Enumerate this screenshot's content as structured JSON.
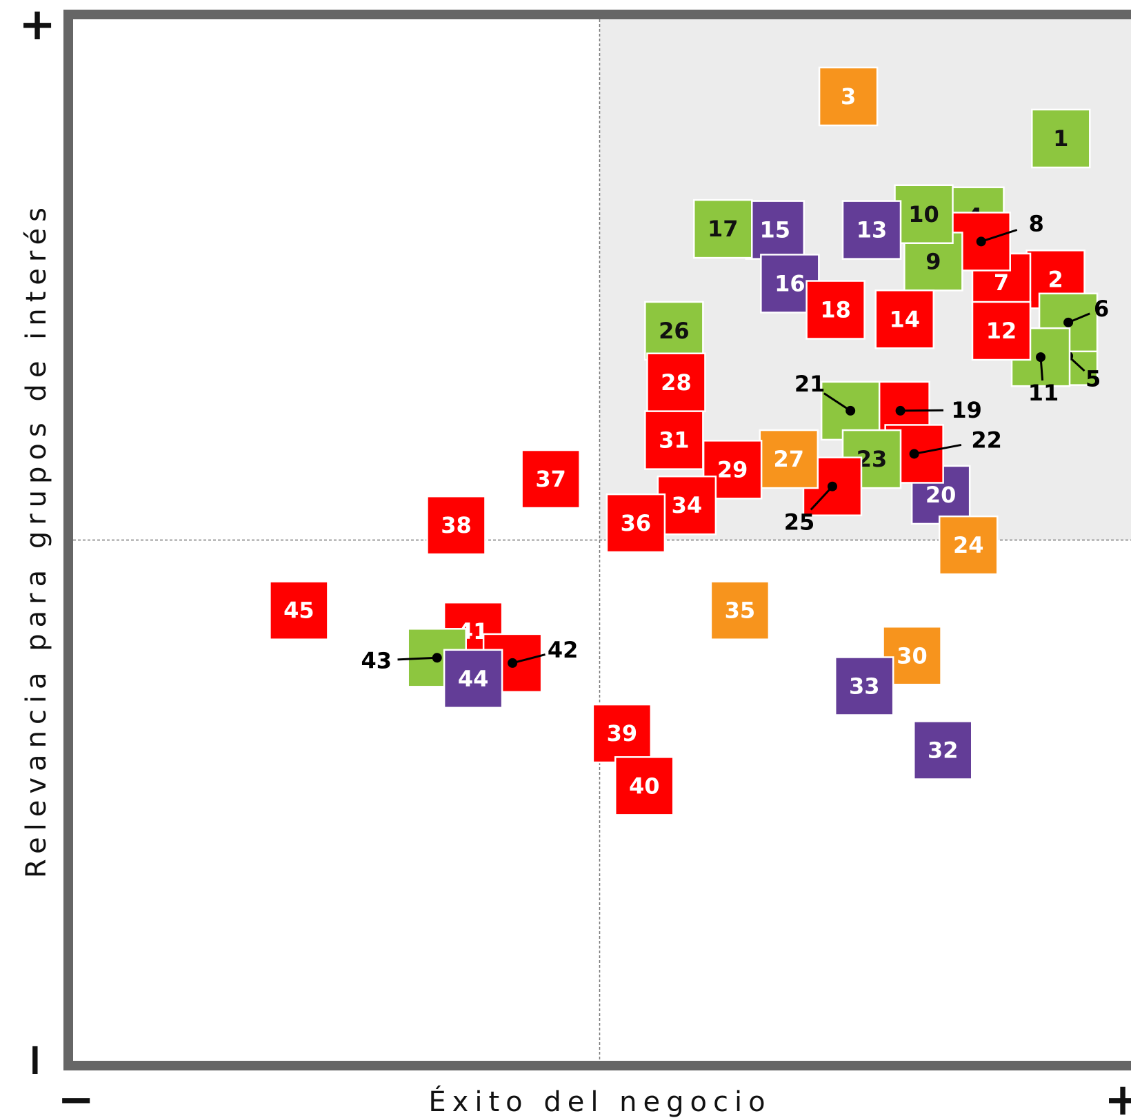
{
  "chart_data": {
    "type": "scatter",
    "x_label": "Éxito del negocio",
    "y_label": "Relevancia para grupos de interés",
    "x_min_label": "−",
    "x_max_label": "+",
    "y_min_label": "−",
    "y_max_label": "+",
    "xlim": [
      0,
      100
    ],
    "ylim": [
      0,
      100
    ],
    "x_split": 50,
    "y_split": 50,
    "highlight_color": "#ececec",
    "colors": {
      "green": "#8dc63f",
      "purple": "#633d97",
      "red": "#ff0000",
      "orange": "#f7941d"
    },
    "points": [
      {
        "label": "1",
        "x": 93.4,
        "y": 88.2,
        "color": "green"
      },
      {
        "label": "2",
        "x": 92.9,
        "y": 74.8,
        "color": "red"
      },
      {
        "label": "3",
        "x": 73.4,
        "y": 92.2,
        "color": "orange"
      },
      {
        "label": "4",
        "x": 85.3,
        "y": 80.8,
        "color": "green"
      },
      {
        "label": "5",
        "x": 94.1,
        "y": 67.5,
        "color": "green"
      },
      {
        "label": "6",
        "x": 94.1,
        "y": 70.7,
        "color": "green"
      },
      {
        "label": "7",
        "x": 87.8,
        "y": 74.5,
        "color": "red"
      },
      {
        "label": "8",
        "x": 85.9,
        "y": 78.4,
        "color": "red"
      },
      {
        "label": "9",
        "x": 81.4,
        "y": 76.5,
        "color": "green"
      },
      {
        "label": "10",
        "x": 80.5,
        "y": 81.0,
        "color": "green"
      },
      {
        "label": "11",
        "x": 91.5,
        "y": 67.4,
        "color": "green"
      },
      {
        "label": "12",
        "x": 87.8,
        "y": 69.9,
        "color": "red"
      },
      {
        "label": "13",
        "x": 75.6,
        "y": 79.5,
        "color": "purple"
      },
      {
        "label": "14",
        "x": 78.7,
        "y": 71.0,
        "color": "red"
      },
      {
        "label": "15",
        "x": 66.5,
        "y": 79.5,
        "color": "purple"
      },
      {
        "label": "16",
        "x": 67.9,
        "y": 74.4,
        "color": "purple"
      },
      {
        "label": "17",
        "x": 61.6,
        "y": 79.6,
        "color": "green"
      },
      {
        "label": "18",
        "x": 72.2,
        "y": 71.9,
        "color": "red"
      },
      {
        "label": "19",
        "x": 78.3,
        "y": 62.3,
        "color": "red"
      },
      {
        "label": "20",
        "x": 82.1,
        "y": 54.3,
        "color": "purple"
      },
      {
        "label": "21",
        "x": 73.6,
        "y": 62.3,
        "color": "green"
      },
      {
        "label": "22",
        "x": 79.6,
        "y": 58.2,
        "color": "red"
      },
      {
        "label": "23",
        "x": 75.6,
        "y": 57.7,
        "color": "green"
      },
      {
        "label": "24",
        "x": 84.7,
        "y": 49.5,
        "color": "orange"
      },
      {
        "label": "25",
        "x": 71.9,
        "y": 55.1,
        "color": "red"
      },
      {
        "label": "26",
        "x": 57.0,
        "y": 69.9,
        "color": "green"
      },
      {
        "label": "27",
        "x": 67.8,
        "y": 57.7,
        "color": "orange"
      },
      {
        "label": "28",
        "x": 57.2,
        "y": 65.0,
        "color": "red"
      },
      {
        "label": "29",
        "x": 62.5,
        "y": 56.7,
        "color": "red"
      },
      {
        "label": "30",
        "x": 79.4,
        "y": 39.0,
        "color": "orange"
      },
      {
        "label": "31",
        "x": 57.0,
        "y": 59.5,
        "color": "red"
      },
      {
        "label": "32",
        "x": 82.3,
        "y": 30.0,
        "color": "purple"
      },
      {
        "label": "33",
        "x": 74.9,
        "y": 36.1,
        "color": "purple"
      },
      {
        "label": "34",
        "x": 58.2,
        "y": 53.3,
        "color": "red"
      },
      {
        "label": "35",
        "x": 63.2,
        "y": 43.3,
        "color": "orange"
      },
      {
        "label": "36",
        "x": 53.4,
        "y": 51.6,
        "color": "red"
      },
      {
        "label": "37",
        "x": 45.4,
        "y": 55.8,
        "color": "red"
      },
      {
        "label": "38",
        "x": 36.5,
        "y": 51.4,
        "color": "red"
      },
      {
        "label": "39",
        "x": 52.1,
        "y": 31.6,
        "color": "red"
      },
      {
        "label": "40",
        "x": 54.2,
        "y": 26.6,
        "color": "red"
      },
      {
        "label": "41",
        "x": 38.1,
        "y": 41.3,
        "color": "red"
      },
      {
        "label": "42",
        "x": 41.8,
        "y": 38.3,
        "color": "red"
      },
      {
        "label": "43",
        "x": 34.7,
        "y": 38.8,
        "color": "green"
      },
      {
        "label": "44",
        "x": 38.1,
        "y": 36.8,
        "color": "purple"
      },
      {
        "label": "45",
        "x": 21.7,
        "y": 43.3,
        "color": "red"
      }
    ]
  }
}
